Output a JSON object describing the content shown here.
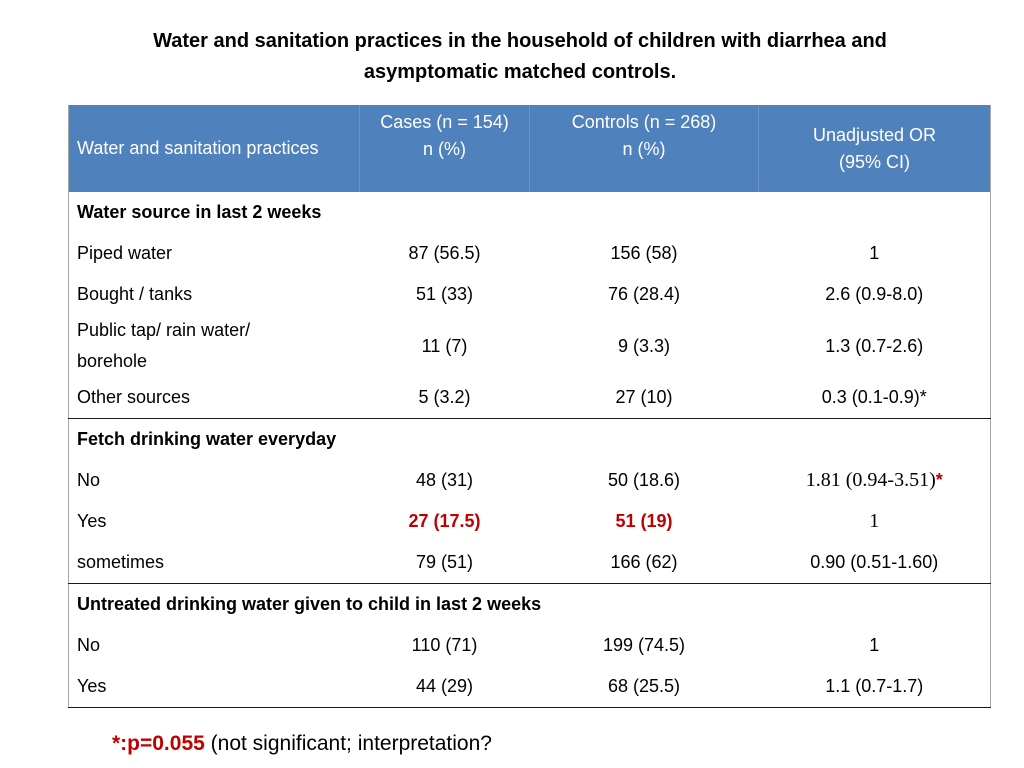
{
  "title_line1": "Water and sanitation practices in the household of children with diarrhea and",
  "title_line2": "asymptomatic matched controls.",
  "header": {
    "col1": "Water and sanitation practices",
    "col2_line1": "Cases (n = 154)",
    "col2_line2": "n (%)",
    "col3_line1": "Controls (n = 268)",
    "col3_line2": "n (%)",
    "col4_line1": "Unadjusted  OR",
    "col4_line2": "(95% CI)"
  },
  "sections": [
    {
      "heading": "Water source in last 2 weeks",
      "rows": [
        {
          "label": "Piped water",
          "cases": "87 (56.5)",
          "controls": "156 (58)",
          "or": "1"
        },
        {
          "label": "Bought / tanks",
          "cases": "51 (33)",
          "controls": "76 (28.4)",
          "or": "2.6 (0.9-8.0)"
        },
        {
          "label_line1": "Public tap/ rain water/",
          "label_line2": "borehole",
          "cases": "11 (7)",
          "controls": "9 (3.3)",
          "or": "1.3 (0.7-2.6)"
        },
        {
          "label": "Other sources",
          "cases": "5 (3.2)",
          "controls": "27 (10)",
          "or": "0.3 (0.1-0.9)*"
        }
      ]
    },
    {
      "heading": "Fetch drinking water  everyday",
      "rows": [
        {
          "label": "No",
          "cases": "48 (31)",
          "controls": "50 (18.6)",
          "or": "1.81 (0.94-3.51)",
          "or_mark": "*"
        },
        {
          "label": "Yes",
          "cases": "27 (17.5)",
          "controls": "51 (19)",
          "or": "1"
        },
        {
          "label": "sometimes",
          "cases": "79 (51)",
          "controls": "166 (62)",
          "or": "0.90 (0.51-1.60)"
        }
      ]
    },
    {
      "heading": "Untreated drinking water given to child in last 2 weeks",
      "rows": [
        {
          "label": "No",
          "cases": "110 (71)",
          "controls": "199 (74.5)",
          "or": "1"
        },
        {
          "label": "Yes",
          "cases": "44 (29)",
          "controls": "68 (25.5)",
          "or": "1.1  (0.7-1.7)"
        }
      ]
    }
  ],
  "footnote": {
    "emphasis": "*:p=0.055",
    "text": " (not significant; interpretation?"
  },
  "colors": {
    "header_bg": "#4f81bd",
    "header_text": "#ffffff",
    "highlight_red": "#c00000"
  }
}
